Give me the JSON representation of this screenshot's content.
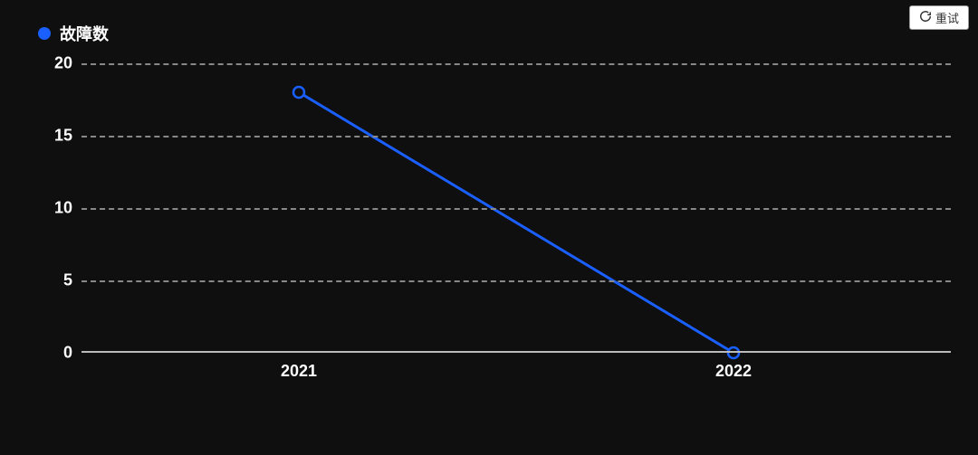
{
  "retry_button": {
    "label": "重试"
  },
  "legend": {
    "label": "故障数",
    "marker_color": "#1a5fff"
  },
  "chart": {
    "type": "line",
    "background_color": "#0f0f0f",
    "grid_color": "#888888",
    "axis_color": "#bbbbbb",
    "text_color": "#ffffff",
    "line_color": "#1a5fff",
    "line_width": 3,
    "marker_style": "circle",
    "marker_size": 6,
    "marker_fill": "#0f0f0f",
    "marker_stroke": "#1a5fff",
    "marker_stroke_width": 2.5,
    "ylim": [
      0,
      20
    ],
    "ytick_step": 5,
    "yticks": [
      0,
      5,
      10,
      15,
      20
    ],
    "xticks": [
      "2021",
      "2022"
    ],
    "x_positions_pct": [
      25,
      75
    ],
    "series": {
      "name": "故障数",
      "x": [
        "2021",
        "2022"
      ],
      "y": [
        18,
        0
      ]
    },
    "label_fontsize": 18,
    "legend_fontsize": 18,
    "grid_dash": "dashed"
  }
}
